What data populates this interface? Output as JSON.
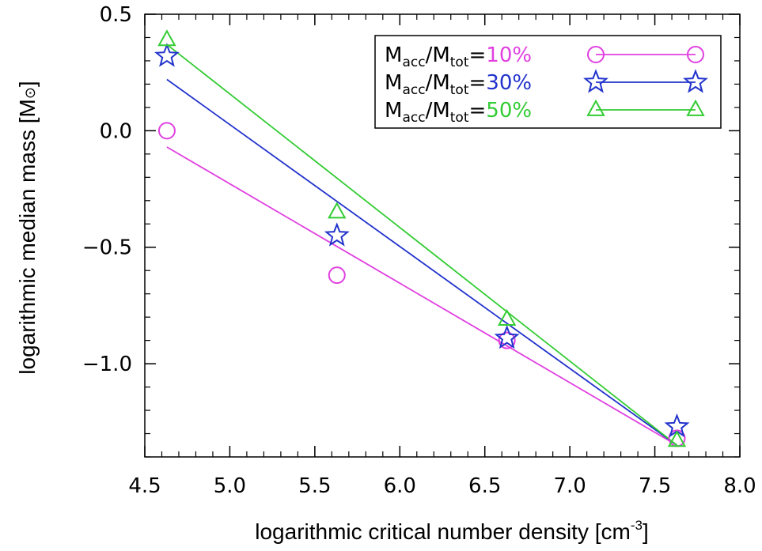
{
  "chart_data": {
    "type": "scatter",
    "xlabel": "logarithmic critical number density [cm",
    "xlabel_sup": "-3",
    "xlabel_end": "]",
    "ylabel": "logarithmic median mass  [M",
    "ylabel_sym": "⊙",
    "ylabel_end": "]",
    "xlim": [
      4.5,
      8.0
    ],
    "ylim": [
      -1.4,
      0.5
    ],
    "xticks": [
      4.5,
      5.0,
      5.5,
      6.0,
      6.5,
      7.0,
      7.5,
      8.0
    ],
    "xtick_labels": [
      "4.5",
      "5.0",
      "5.5",
      "6.0",
      "6.5",
      "7.0",
      "7.5",
      "8.0"
    ],
    "yticks": [
      0.5,
      0.0,
      -0.5,
      -1.0
    ],
    "ytick_labels": [
      "0.5",
      "0.0",
      "−0.5",
      "−1.0"
    ],
    "legend_position": "top-right",
    "legend_prefix": "M",
    "legend_sub1": "acc",
    "legend_slash": "/M",
    "legend_sub2": "tot",
    "legend_eq": "=",
    "series": [
      {
        "name": "10%",
        "marker": "circle",
        "color": "#e040e0",
        "x": [
          4.63,
          5.63,
          6.63,
          7.63
        ],
        "y": [
          0.0,
          -0.62,
          -0.9,
          -1.32
        ],
        "fit": [
          [
            4.63,
            -0.07
          ],
          [
            7.63,
            -1.35
          ]
        ]
      },
      {
        "name": "30%",
        "marker": "star",
        "color": "#2233cc",
        "x": [
          4.63,
          5.63,
          6.63,
          7.63
        ],
        "y": [
          0.32,
          -0.45,
          -0.89,
          -1.27
        ],
        "fit": [
          [
            4.63,
            0.22
          ],
          [
            7.63,
            -1.35
          ]
        ]
      },
      {
        "name": "50%",
        "marker": "triangle",
        "color": "#33cc33",
        "x": [
          4.63,
          5.63,
          6.63,
          7.63
        ],
        "y": [
          0.39,
          -0.35,
          -0.81,
          -1.33
        ],
        "fit": [
          [
            4.63,
            0.37
          ],
          [
            7.63,
            -1.35
          ]
        ]
      }
    ]
  }
}
